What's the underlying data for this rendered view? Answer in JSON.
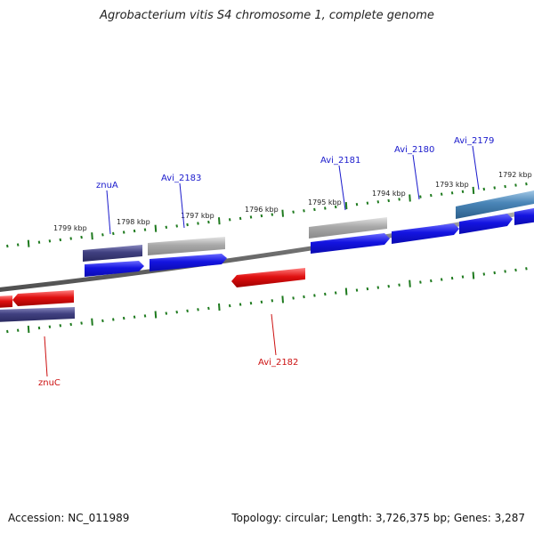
{
  "title": "Agrobacterium vitis S4 chromosome 1, complete genome",
  "footer": {
    "accession": "Accession: NC_011989",
    "summary": "Topology: circular; Length: 3,726,375 bp; Genes: 3,287"
  },
  "colors": {
    "backbone": "#808080",
    "tick": "#1e7a1e",
    "gene_blue": "#1a1ae6",
    "gene_navy": "#404080",
    "gene_grey": "#a8a8a8",
    "gene_steel": "#4a86b8",
    "gene_red": "#e01010",
    "label_blue": "#1a1acc",
    "label_red": "#cc1010"
  },
  "tick_labels": [
    "1799 kbp",
    "1798 kbp",
    "1797 kbp",
    "1796 kbp",
    "1795 kbp",
    "1794 kbp",
    "1793 kbp",
    "1792 kbp"
  ],
  "gene_labels": [
    {
      "id": "znuA",
      "text": "znuA",
      "color": "blue"
    },
    {
      "id": "avi-2183",
      "text": "Avi_2183",
      "color": "blue"
    },
    {
      "id": "avi-2181",
      "text": "Avi_2181",
      "color": "blue"
    },
    {
      "id": "avi-2180",
      "text": "Avi_2180",
      "color": "blue"
    },
    {
      "id": "avi-2179",
      "text": "Avi_2179",
      "color": "blue"
    },
    {
      "id": "avi-2182",
      "text": "Avi_2182",
      "color": "red"
    },
    {
      "id": "znuC",
      "text": "znuC",
      "color": "red"
    }
  ]
}
